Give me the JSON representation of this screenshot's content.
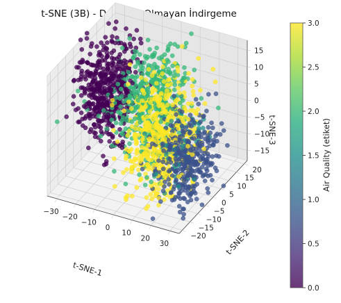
{
  "chart_data": {
    "type": "scatter",
    "projection": "3d",
    "title": "t-SNE (3B) - Doğrusal Olmayan İndirgeme",
    "xlabel": "t-SNE-1",
    "ylabel": "t-SNE-2",
    "zlabel": "t-SNE-3",
    "xlim": [
      -35,
      35
    ],
    "ylim": [
      -22,
      22
    ],
    "zlim": [
      -18,
      18
    ],
    "xticks": [
      -30,
      -20,
      -10,
      0,
      10,
      20,
      30
    ],
    "yticks": [
      -20,
      -15,
      -10,
      -5,
      0,
      5,
      10,
      15,
      20
    ],
    "zticks": [
      -15,
      -10,
      -5,
      0,
      5,
      10,
      15
    ],
    "grid": true,
    "colormap": "viridis",
    "point_alpha": 0.75,
    "colorbar": {
      "label": "Air Quality (etiket)",
      "range": [
        0.0,
        3.0
      ],
      "ticks": [
        "0.0",
        "0.5",
        "1.0",
        "1.5",
        "2.0",
        "2.5",
        "3.0"
      ],
      "position": "right"
    },
    "series": [
      {
        "label_value": 0,
        "color": "#440154",
        "count": 520,
        "center": [
          -22,
          2,
          4
        ],
        "spread": [
          6,
          7,
          7
        ]
      },
      {
        "label_value": 1,
        "color": "#3b528b",
        "count": 380,
        "center": [
          24,
          -4,
          -6
        ],
        "spread": [
          6,
          6,
          6
        ]
      },
      {
        "label_value": 2,
        "color": "#21918c",
        "count": 60,
        "center": [
          18,
          -2,
          -4
        ],
        "spread": [
          6,
          6,
          6
        ]
      },
      {
        "label_value": 2,
        "color": "#35b779",
        "count": 520,
        "center": [
          -2,
          4,
          2
        ],
        "spread": [
          9,
          7,
          8
        ]
      },
      {
        "label_value": 3,
        "color": "#fde725",
        "count": 560,
        "center": [
          10,
          -3,
          -2
        ],
        "spread": [
          8,
          7,
          8
        ]
      }
    ]
  }
}
